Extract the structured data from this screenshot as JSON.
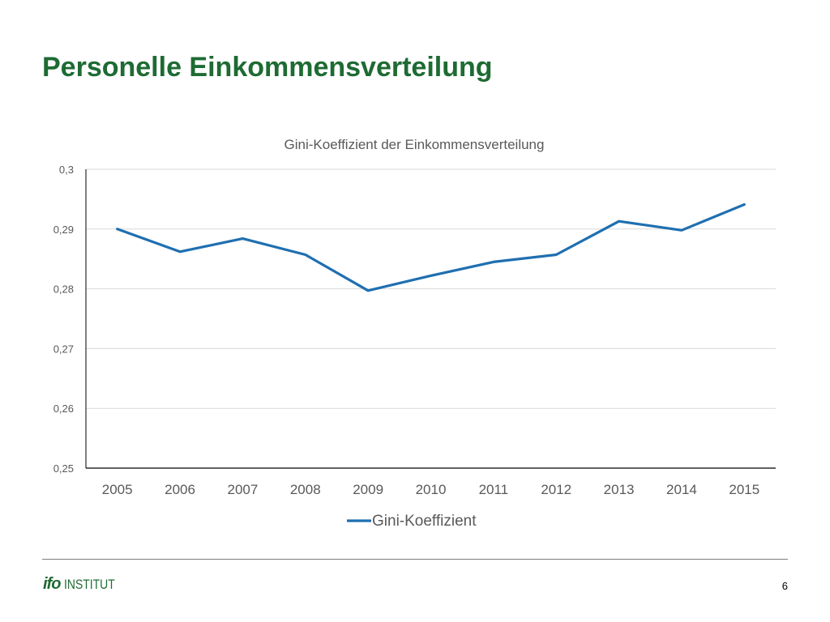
{
  "slide": {
    "title": "Personelle Einkommensverteilung",
    "page_number": "6"
  },
  "footer": {
    "logo_mark": "ifo",
    "logo_text": "INSTITUT"
  },
  "colors": {
    "title": "#1e6b33",
    "series": "#1f6fb0",
    "gridline": "#d9d9d9",
    "axis": "#000000",
    "label": "#595959"
  },
  "chart_data": {
    "type": "line",
    "title": "Gini-Koeffizient der Einkommensverteilung",
    "categories": [
      "2005",
      "2006",
      "2007",
      "2008",
      "2009",
      "2010",
      "2011",
      "2012",
      "2013",
      "2014",
      "2015"
    ],
    "series": [
      {
        "name": "Gini-Koeffizient",
        "values": [
          0.29,
          0.2862,
          0.2884,
          0.2857,
          0.2797,
          0.2822,
          0.2845,
          0.2857,
          0.2913,
          0.2898,
          0.2941
        ]
      }
    ],
    "ylim": [
      0.25,
      0.3
    ],
    "yticks": [
      "0,25",
      "0,26",
      "0,27",
      "0,28",
      "0,29",
      "0,3"
    ],
    "grid": true,
    "legend": "bottom"
  }
}
